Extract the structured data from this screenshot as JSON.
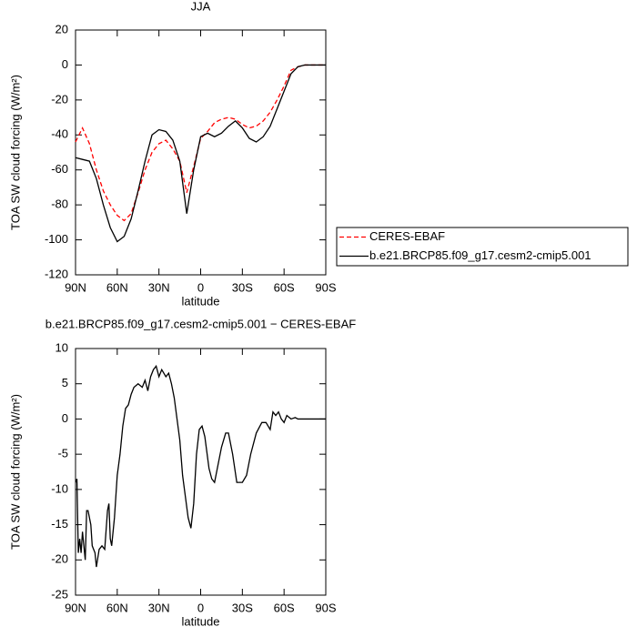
{
  "chart_data": [
    {
      "type": "line",
      "title": "JJA",
      "xlabel": "latitude",
      "ylabel": "TOA SW cloud forcing (W/m²)",
      "x": [
        90,
        85,
        80,
        75,
        70,
        65,
        60,
        55,
        50,
        45,
        40,
        35,
        30,
        25,
        20,
        15,
        10,
        5,
        0,
        -5,
        -10,
        -15,
        -20,
        -25,
        -30,
        -35,
        -40,
        -45,
        -50,
        -55,
        -60,
        -65,
        -70,
        -75,
        -80,
        -85,
        -90
      ],
      "xlim": [
        90,
        -90
      ],
      "xticks": [
        {
          "value": 90,
          "label": "90N"
        },
        {
          "value": 60,
          "label": "60N"
        },
        {
          "value": 30,
          "label": "30N"
        },
        0,
        {
          "value": -30,
          "label": "30S"
        },
        {
          "value": -60,
          "label": "60S"
        },
        {
          "value": -90,
          "label": "90S"
        }
      ],
      "ylim": [
        -120,
        20
      ],
      "yticks": [
        -120,
        -100,
        -80,
        -60,
        -40,
        -20,
        0,
        20
      ],
      "legend": "right",
      "series": [
        {
          "name": "CERES-EBAF",
          "color": "#ff0000",
          "dash": true,
          "values": [
            -44,
            -36,
            -45,
            -60,
            -72,
            -80,
            -86,
            -89,
            -85,
            -73,
            -60,
            -50,
            -45,
            -43,
            -48,
            -55,
            -73,
            -58,
            -42,
            -38,
            -33,
            -31,
            -30,
            -31,
            -34,
            -36,
            -35,
            -32,
            -27,
            -20,
            -12,
            -3,
            -1,
            0,
            0,
            0,
            0
          ]
        },
        {
          "name": "b.e21.BRCP85.f09_g17.cesm2-cmip5.001",
          "color": "#000000",
          "dash": false,
          "values": [
            -53,
            -54,
            -55,
            -65,
            -80,
            -93,
            -101,
            -98,
            -88,
            -72,
            -55,
            -40,
            -37,
            -38,
            -43,
            -55,
            -85,
            -60,
            -41,
            -39,
            -41,
            -39,
            -35,
            -32,
            -36,
            -42,
            -44,
            -41,
            -35,
            -25,
            -15,
            -5,
            -1,
            0,
            0,
            0,
            0
          ]
        }
      ]
    },
    {
      "type": "line",
      "title": "b.e21.BRCP85.f09_g17.cesm2-cmip5.001 − CERES-EBAF",
      "xlabel": "latitude",
      "ylabel": "TOA SW cloud forcing (W/m²)",
      "x": [
        90,
        89,
        88,
        87,
        86,
        85,
        83,
        82,
        81,
        79,
        78,
        76,
        75,
        73,
        71,
        69,
        67,
        66,
        65,
        64,
        62,
        60,
        58,
        56,
        54,
        52,
        50,
        48,
        45,
        42,
        40,
        38,
        36,
        34,
        32,
        30,
        28,
        25,
        23,
        21,
        19,
        17,
        15,
        13,
        11,
        9,
        7,
        5,
        3,
        1,
        -1,
        -3,
        -6,
        -8,
        -10,
        -12,
        -15,
        -18,
        -20,
        -23,
        -26,
        -30,
        -33,
        -36,
        -40,
        -44,
        -47,
        -50,
        -52,
        -54,
        -56,
        -58,
        -60,
        -62,
        -65,
        -68,
        -70,
        -75,
        -80,
        -85,
        -90
      ],
      "xlim": [
        90,
        -90
      ],
      "xticks": [
        {
          "value": 90,
          "label": "90N"
        },
        {
          "value": 60,
          "label": "60N"
        },
        {
          "value": 30,
          "label": "30N"
        },
        0,
        {
          "value": -30,
          "label": "30S"
        },
        {
          "value": -60,
          "label": "60S"
        },
        {
          "value": -90,
          "label": "90S"
        }
      ],
      "ylim": [
        -25,
        10
      ],
      "yticks": [
        -25,
        -20,
        -15,
        -10,
        -5,
        0,
        5,
        10
      ],
      "series": [
        {
          "color": "#000000",
          "dash": false,
          "values": [
            -9,
            -8.5,
            -19,
            -17,
            -19,
            -16,
            -20,
            -13,
            -13,
            -15,
            -18,
            -19,
            -21,
            -18.5,
            -18,
            -18.5,
            -13,
            -12,
            -17,
            -18,
            -14,
            -8,
            -5,
            -1,
            1.5,
            2,
            3.5,
            4.5,
            5,
            4.5,
            5.5,
            4,
            6,
            7,
            7.5,
            6,
            7,
            6,
            6.5,
            5,
            3,
            0,
            -3,
            -8,
            -11,
            -14,
            -15.5,
            -12,
            -5,
            -1.5,
            -1,
            -2.5,
            -7,
            -8.5,
            -9,
            -7,
            -4,
            -2,
            -2,
            -5,
            -9,
            -9,
            -8,
            -5,
            -2,
            -0.5,
            -0.5,
            -1.5,
            1,
            0.5,
            1,
            0,
            -0.5,
            0.5,
            0,
            0.2,
            0,
            0,
            0,
            0,
            0
          ]
        }
      ]
    }
  ]
}
